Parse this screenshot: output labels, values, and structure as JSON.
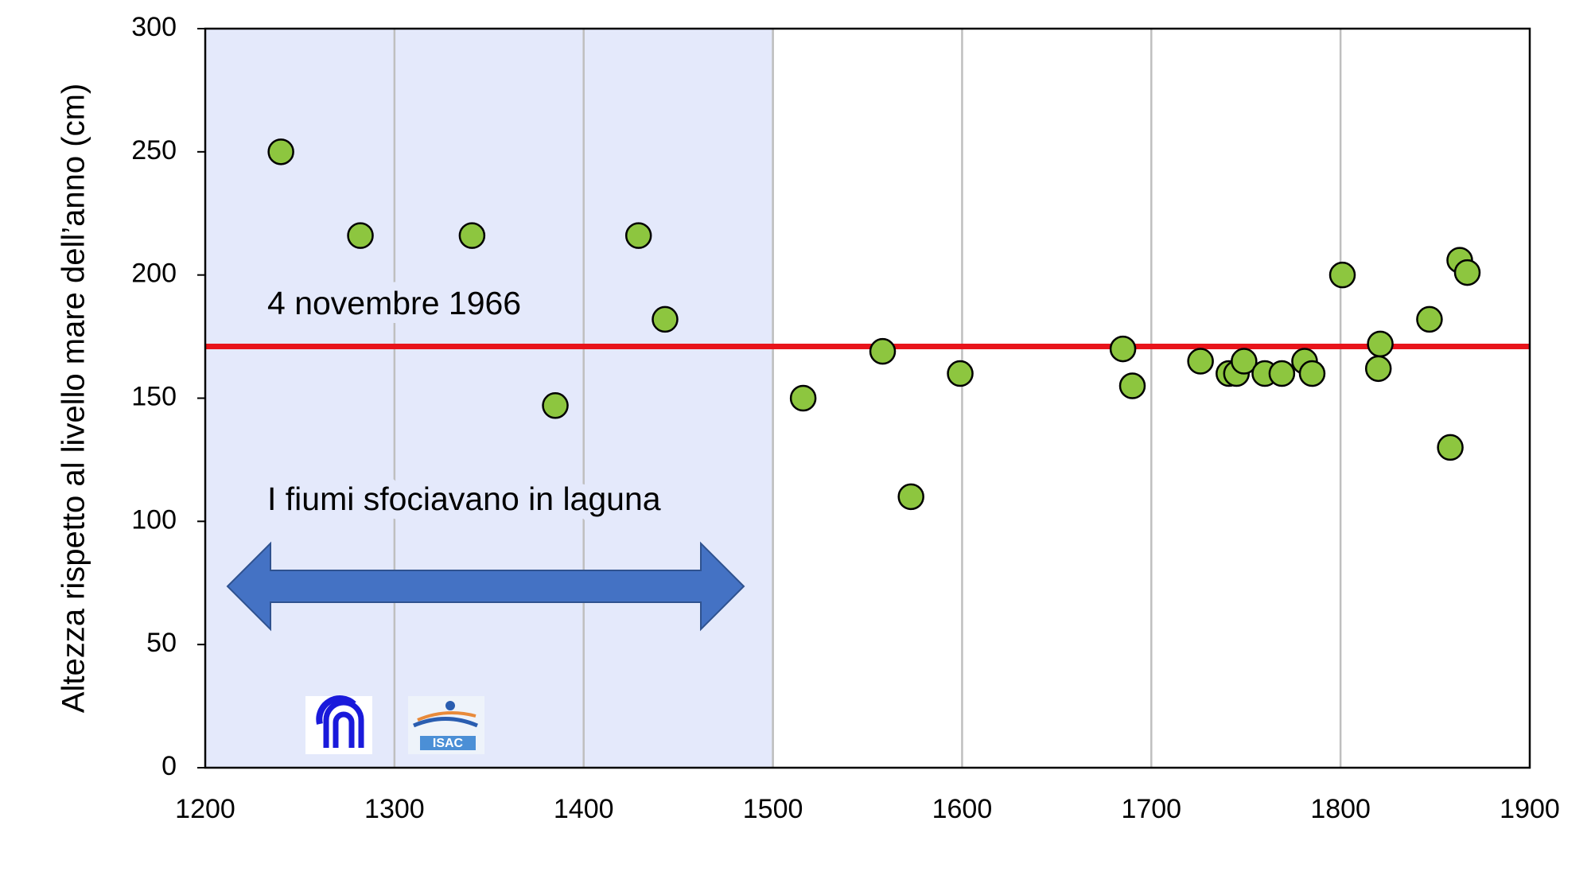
{
  "chart_data": {
    "type": "scatter",
    "ylabel": "Altezza rispetto al livello mare dell’anno (cm)",
    "xlim": [
      1200,
      1900
    ],
    "xticks": [
      1200,
      1300,
      1400,
      1500,
      1600,
      1700,
      1800,
      1900
    ],
    "ylim": [
      0,
      300
    ],
    "yticks": [
      0,
      50,
      100,
      150,
      200,
      250,
      300
    ],
    "grid": true,
    "series": [
      {
        "color": "#8dc63f",
        "x": [
          1240,
          1282,
          1341,
          1385,
          1429,
          1443,
          1516,
          1558,
          1573,
          1599,
          1685,
          1690,
          1726,
          1741,
          1745,
          1749,
          1760,
          1769,
          1781,
          1785,
          1801,
          1820,
          1821,
          1847,
          1858,
          1863,
          1867
        ],
        "values": [
          250,
          216,
          216,
          147,
          216,
          182,
          150,
          169,
          110,
          160,
          170,
          155,
          165,
          160,
          160,
          165,
          160,
          160,
          165,
          160,
          200,
          162,
          172,
          182,
          130,
          206,
          201
        ]
      }
    ],
    "reference_line": {
      "value": 171,
      "label": "4 novembre 1966",
      "color": "#e8141b"
    },
    "shaded_region": {
      "x": [
        1200,
        1500
      ],
      "label": "I fiumi sfociavano in laguna",
      "color": "#e4e9fb",
      "arrow_color": "#4472c4"
    },
    "logo_text": "ISAC"
  }
}
